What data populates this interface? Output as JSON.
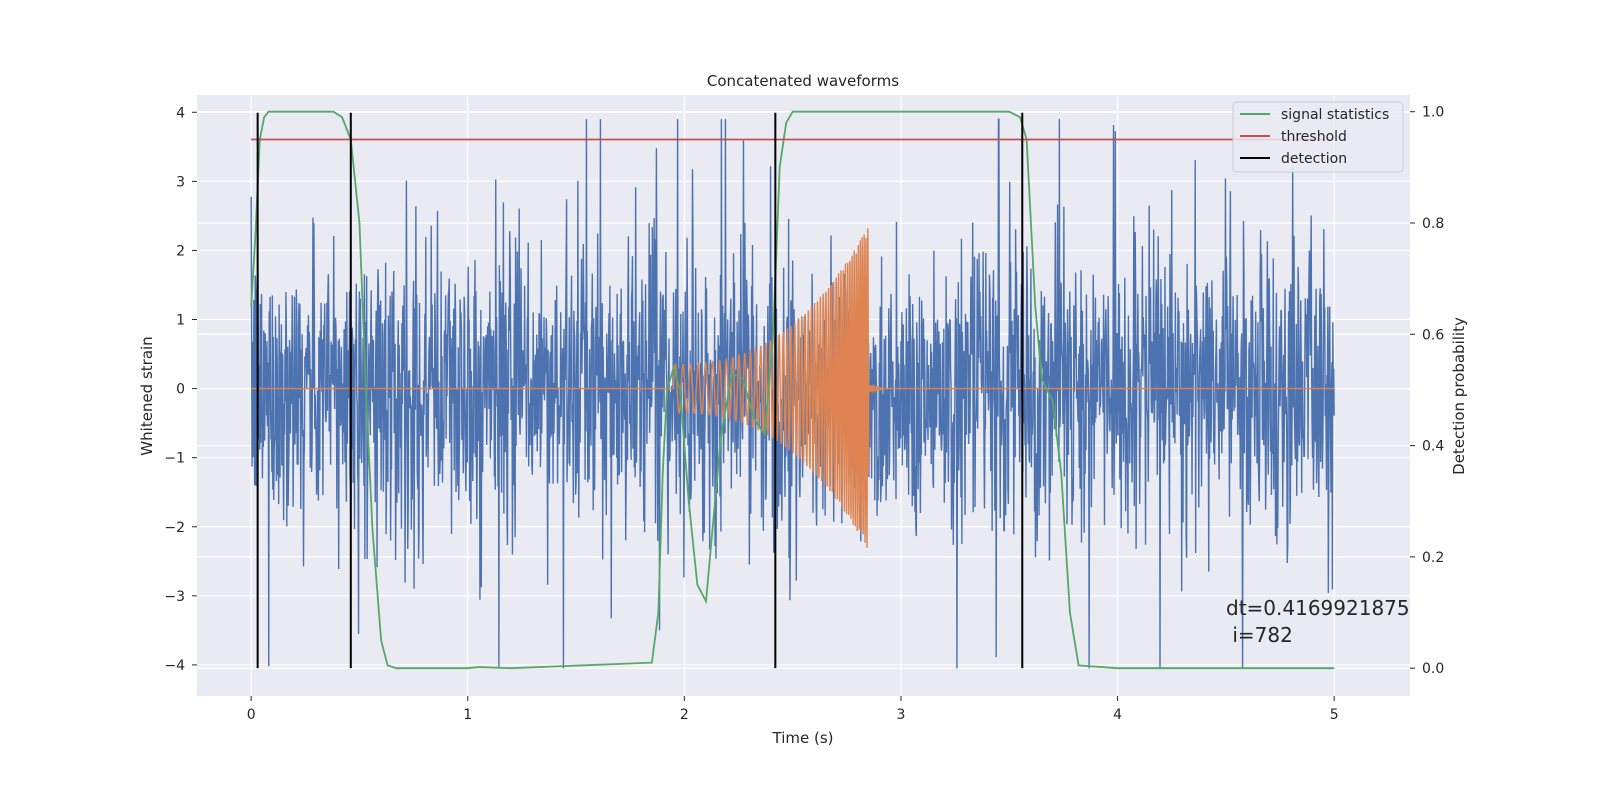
{
  "chart_data": {
    "type": "line",
    "title": "Concatenated waveforms",
    "xlabel": "Time (s)",
    "ylabel": "Whitened strain",
    "ylabel_right": "Detection probability",
    "xlim": [
      -0.25,
      5.35
    ],
    "ylim": [
      -4.45,
      4.25
    ],
    "ylim_right": [
      -0.05,
      1.03
    ],
    "x_ticks": [
      "0",
      "1",
      "2",
      "3",
      "4",
      "5"
    ],
    "y_ticks": [
      "4",
      "3",
      "2",
      "1",
      "0",
      "−1",
      "−2",
      "−3",
      "−4"
    ],
    "y_ticks_right": [
      "1.0",
      "0.8",
      "0.6",
      "0.4",
      "0.2",
      "0.0"
    ],
    "grid": true,
    "legend": "top-right",
    "legend_entries": [
      {
        "label": "signal statistics",
        "color": "#55a868"
      },
      {
        "label": "threshold",
        "color": "#c44e52"
      },
      {
        "label": "detection",
        "color": "#000000"
      }
    ],
    "series": [
      {
        "name": "strain",
        "axis": "left",
        "color": "#4c72b0",
        "kind": "noise",
        "x_range": [
          0,
          5
        ],
        "amplitude_typical": 1.0,
        "peak_max": 3.9,
        "peak_min": -4.05
      },
      {
        "name": "injected chirp",
        "axis": "left",
        "color": "#dd8452",
        "kind": "chirp",
        "x_range": [
          0,
          5
        ],
        "chirp_start": 1.95,
        "chirp_end": 2.85,
        "amplitude_start": 0.35,
        "amplitude_end": 2.35
      },
      {
        "name": "signal statistics",
        "axis": "right",
        "color": "#55a868",
        "x": [
          0.0,
          0.02,
          0.04,
          0.06,
          0.08,
          0.12,
          0.2,
          0.3,
          0.38,
          0.42,
          0.46,
          0.5,
          0.53,
          0.56,
          0.6,
          0.63,
          0.67,
          1.0,
          1.05,
          1.2,
          1.85,
          1.88,
          1.9,
          1.92,
          1.95,
          1.98,
          2.02,
          2.06,
          2.1,
          2.13,
          2.17,
          2.22,
          2.27,
          2.32,
          2.37,
          2.41,
          2.44,
          2.47,
          2.5,
          2.55,
          2.7,
          3.0,
          3.3,
          3.5,
          3.55,
          3.58,
          3.62,
          3.65,
          3.7,
          3.74,
          3.78,
          3.82,
          4.0,
          5.0
        ],
        "values": [
          0.65,
          0.78,
          0.95,
          0.99,
          1.0,
          1.0,
          1.0,
          1.0,
          1.0,
          0.99,
          0.95,
          0.8,
          0.5,
          0.25,
          0.05,
          0.005,
          0.0,
          0.0,
          0.002,
          0.0,
          0.01,
          0.1,
          0.35,
          0.5,
          0.54,
          0.5,
          0.3,
          0.15,
          0.12,
          0.25,
          0.42,
          0.53,
          0.52,
          0.45,
          0.42,
          0.6,
          0.9,
          0.98,
          1.0,
          1.0,
          1.0,
          1.0,
          1.0,
          1.0,
          0.99,
          0.95,
          0.65,
          0.52,
          0.48,
          0.35,
          0.1,
          0.005,
          0.0,
          0.0
        ]
      },
      {
        "name": "threshold",
        "axis": "right",
        "color": "#c44e52",
        "x": [
          0,
          5
        ],
        "values": [
          0.95,
          0.95
        ]
      }
    ],
    "detections": [
      0.03,
      0.46,
      2.42,
      3.56
    ],
    "detection_color": "#000000",
    "annotation": [
      "dt=0.4169921875",
      " i=782"
    ]
  }
}
